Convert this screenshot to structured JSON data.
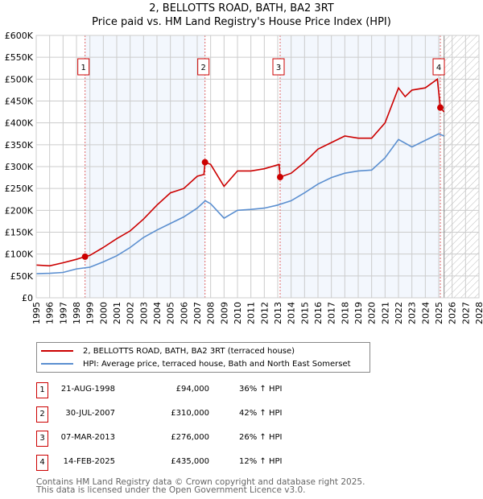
{
  "chart_data": {
    "type": "line",
    "title": "2, BELLOTTS ROAD, BATH, BA2 3RT",
    "subtitle": "Price paid vs. HM Land Registry's House Price Index (HPI)",
    "xlim": [
      1995,
      2028
    ],
    "ylim": [
      0,
      600000
    ],
    "x_ticks": [
      1995,
      1996,
      1997,
      1998,
      1999,
      2000,
      2001,
      2002,
      2003,
      2004,
      2005,
      2006,
      2007,
      2008,
      2009,
      2010,
      2011,
      2012,
      2013,
      2014,
      2015,
      2016,
      2017,
      2018,
      2019,
      2020,
      2021,
      2022,
      2023,
      2024,
      2025,
      2026,
      2027,
      2028
    ],
    "y_ticks": [
      {
        "v": 0,
        "label": "£0"
      },
      {
        "v": 50000,
        "label": "£50K"
      },
      {
        "v": 100000,
        "label": "£100K"
      },
      {
        "v": 150000,
        "label": "£150K"
      },
      {
        "v": 200000,
        "label": "£200K"
      },
      {
        "v": 250000,
        "label": "£250K"
      },
      {
        "v": 300000,
        "label": "£300K"
      },
      {
        "v": 350000,
        "label": "£350K"
      },
      {
        "v": 400000,
        "label": "£400K"
      },
      {
        "v": 450000,
        "label": "£450K"
      },
      {
        "v": 500000,
        "label": "£500K"
      },
      {
        "v": 550000,
        "label": "£550K"
      },
      {
        "v": 600000,
        "label": "£600K"
      }
    ],
    "grid": true,
    "forecast_hatch_from": 2025.4,
    "series": [
      {
        "name": "2, BELLOTTS ROAD, BATH, BA2 3RT (terraced house)",
        "color": "#cc0000",
        "x": [
          1995,
          1996,
          1997,
          1998,
          1998.64,
          1999,
          2000,
          2001,
          2002,
          2003,
          2004,
          2005,
          2006,
          2007,
          2007.5,
          2007.58,
          2008,
          2009,
          2010,
          2011,
          2012,
          2013.1,
          2013.18,
          2014,
          2015,
          2016,
          2017,
          2018,
          2019,
          2020,
          2021,
          2022,
          2022.5,
          2023,
          2024,
          2024.9,
          2025.12,
          2025.4
        ],
        "y": [
          75000,
          73000,
          80000,
          88000,
          94000,
          97000,
          115000,
          135000,
          153000,
          180000,
          212000,
          240000,
          250000,
          278000,
          282000,
          310000,
          305000,
          255000,
          290000,
          290000,
          295000,
          305000,
          276000,
          285000,
          310000,
          340000,
          355000,
          370000,
          365000,
          365000,
          400000,
          480000,
          460000,
          475000,
          480000,
          500000,
          435000,
          425000
        ]
      },
      {
        "name": "HPI: Average price, terraced house, Bath and North East Somerset",
        "color": "#5b8fd0",
        "x": [
          1995,
          1996,
          1997,
          1998,
          1999,
          2000,
          2001,
          2002,
          2003,
          2004,
          2005,
          2006,
          2007,
          2007.6,
          2008,
          2009,
          2010,
          2011,
          2012,
          2013,
          2014,
          2015,
          2016,
          2017,
          2018,
          2019,
          2020,
          2021,
          2022,
          2023,
          2024,
          2025,
          2025.4
        ],
        "y": [
          55000,
          56000,
          58000,
          66000,
          70000,
          82000,
          96000,
          115000,
          138000,
          155000,
          170000,
          185000,
          205000,
          222000,
          215000,
          182000,
          200000,
          202000,
          205000,
          212000,
          222000,
          240000,
          260000,
          275000,
          285000,
          290000,
          292000,
          320000,
          362000,
          345000,
          360000,
          375000,
          370000
        ]
      }
    ],
    "sales": [
      {
        "n": "1",
        "x": 1998.64,
        "y": 94000,
        "date": "21-AUG-1998",
        "price": "£94,000",
        "hpi": "36% ↑ HPI"
      },
      {
        "n": "2",
        "x": 2007.58,
        "y": 310000,
        "date": "30-JUL-2007",
        "price": "£310,000",
        "hpi": "42% ↑ HPI"
      },
      {
        "n": "3",
        "x": 2013.18,
        "y": 276000,
        "date": "07-MAR-2013",
        "price": "£276,000",
        "hpi": "26% ↑ HPI"
      },
      {
        "n": "4",
        "x": 2025.12,
        "y": 435000,
        "date": "14-FEB-2025",
        "price": "£435,000",
        "hpi": "12% ↑ HPI"
      }
    ]
  },
  "footer": {
    "line1": "Contains HM Land Registry data © Crown copyright and database right 2025.",
    "line2": "This data is licensed under the Open Government Licence v3.0."
  }
}
